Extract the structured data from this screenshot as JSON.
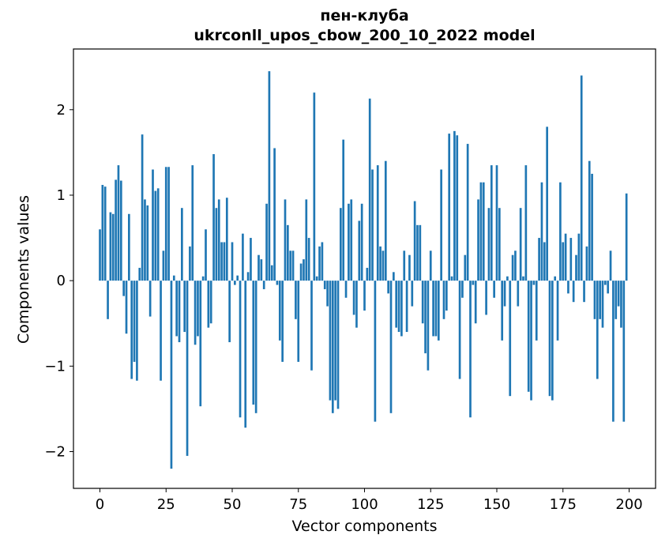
{
  "figure": {
    "title_line1": "пен-клуба",
    "title_line2": "ukrconll_upos_cbow_200_10_2022 model",
    "background": "#ffffff"
  },
  "chart_data": {
    "type": "bar",
    "title": "пен-клуба\nukrconll_upos_cbow_200_10_2022 model",
    "xlabel": "Vector components",
    "ylabel": "Components values",
    "bar_color": "#1f77b4",
    "frame_color": "#000000",
    "grid": false,
    "legend": null,
    "xlim": [
      -10,
      210
    ],
    "ylim": [
      -2.43,
      2.71
    ],
    "xticks": [
      0,
      25,
      50,
      75,
      100,
      125,
      150,
      175,
      200
    ],
    "yticks": [
      -2,
      -1,
      0,
      1,
      2
    ],
    "x_start": 0,
    "bar_width": 0.8,
    "values": [
      0.6,
      1.12,
      1.1,
      -0.45,
      0.8,
      0.78,
      1.18,
      1.35,
      1.17,
      -0.18,
      -0.62,
      0.78,
      -1.15,
      -0.95,
      -1.17,
      0.15,
      1.71,
      0.95,
      0.88,
      -0.42,
      1.3,
      1.05,
      1.08,
      -1.17,
      0.35,
      1.33,
      1.33,
      -2.2,
      0.06,
      -0.65,
      -0.72,
      0.85,
      -0.6,
      -2.05,
      0.4,
      1.35,
      -0.75,
      -0.65,
      -1.47,
      0.05,
      0.6,
      -0.55,
      -0.5,
      1.48,
      0.85,
      0.95,
      0.45,
      0.45,
      0.97,
      -0.72,
      0.45,
      -0.05,
      0.06,
      -1.6,
      0.55,
      -1.72,
      0.1,
      0.5,
      -1.45,
      -1.55,
      0.3,
      0.25,
      -0.1,
      0.9,
      2.45,
      0.18,
      1.55,
      -0.05,
      -0.7,
      -0.95,
      0.95,
      0.65,
      0.35,
      0.35,
      -0.45,
      -0.95,
      0.2,
      0.25,
      0.95,
      0.5,
      -1.05,
      2.2,
      0.05,
      0.4,
      0.45,
      -0.1,
      -0.3,
      -1.4,
      -1.55,
      -1.4,
      -1.5,
      0.85,
      1.65,
      -0.2,
      0.9,
      0.95,
      -0.4,
      -0.55,
      0.7,
      0.9,
      -0.35,
      0.15,
      2.13,
      1.3,
      -1.65,
      1.35,
      0.4,
      0.35,
      1.4,
      -0.15,
      -1.55,
      0.1,
      -0.55,
      -0.6,
      -0.65,
      0.35,
      -0.6,
      0.3,
      -0.3,
      0.93,
      0.65,
      0.65,
      -0.5,
      -0.85,
      -1.05,
      0.35,
      -0.65,
      -0.65,
      -0.7,
      1.3,
      -0.45,
      -0.35,
      1.72,
      0.05,
      1.75,
      1.7,
      -1.15,
      -0.2,
      0.3,
      1.6,
      -1.6,
      -0.05,
      -0.5,
      0.95,
      1.15,
      1.15,
      -0.4,
      0.85,
      1.35,
      -0.2,
      1.35,
      0.85,
      -0.7,
      -0.3,
      0.05,
      -1.35,
      0.3,
      0.35,
      -0.3,
      0.85,
      0.05,
      1.35,
      -1.3,
      -1.4,
      -0.05,
      -0.7,
      0.5,
      1.15,
      0.45,
      1.8,
      -1.35,
      -1.4,
      0.05,
      -0.7,
      1.15,
      0.45,
      0.55,
      -0.15,
      0.5,
      -0.25,
      0.3,
      0.55,
      2.4,
      -0.25,
      0.4,
      1.4,
      1.25,
      -0.45,
      -1.15,
      -0.45,
      -0.55,
      -0.05,
      -0.15,
      0.35,
      -1.65,
      -0.45,
      -0.3,
      -0.55,
      -1.65,
      1.02
    ]
  }
}
